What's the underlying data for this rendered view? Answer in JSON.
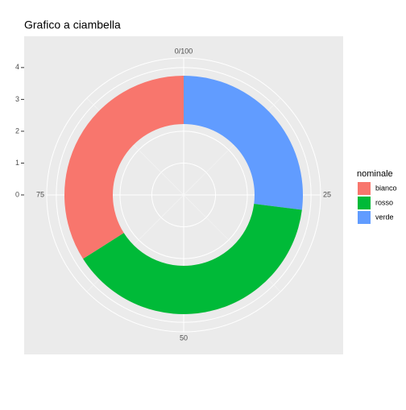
{
  "chart_data": {
    "type": "donut",
    "title": "Grafico a ciambella",
    "legend_title": "nominale",
    "categories": [
      "verde",
      "rosso",
      "bianco"
    ],
    "legend_order": [
      "bianco",
      "rosso",
      "verde"
    ],
    "values": [
      27,
      39,
      34
    ],
    "colors": [
      "#619cff",
      "#00ba38",
      "#f8766d"
    ],
    "thetalim": [
      0,
      100
    ],
    "thetaticks": [
      {
        "value": 0,
        "label": "0/100"
      },
      25,
      50,
      75
    ],
    "ylim": [
      0,
      4.3
    ],
    "yticks": [
      0,
      1,
      2,
      3,
      4
    ],
    "grid": true
  }
}
